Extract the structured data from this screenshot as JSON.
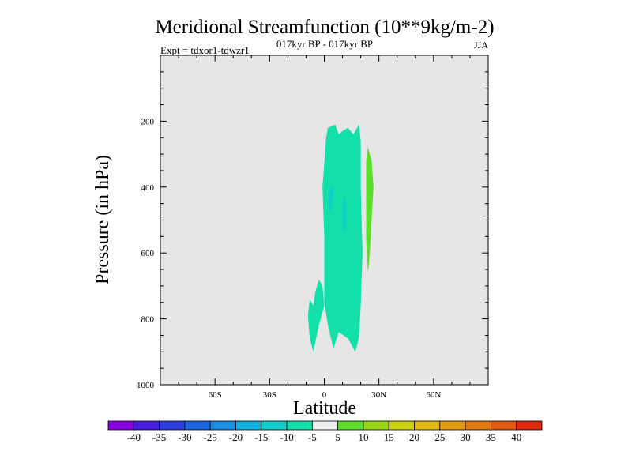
{
  "chart_data": {
    "type": "contour",
    "title": "Meridional Streamfunction (10**9kg/m-2)",
    "subtitle_left": "Expt = tdxor1-tdwzr1",
    "subtitle_center": "017kyr BP - 017kyr BP",
    "subtitle_right": "JJA",
    "xlabel": "Latitude",
    "ylabel": "Pressure (in hPa)",
    "xlim": [
      -90,
      90
    ],
    "ylim": [
      0,
      1000
    ],
    "x_ticks": [
      {
        "value": -60,
        "label": "60S"
      },
      {
        "value": -30,
        "label": "30S"
      },
      {
        "value": 0,
        "label": "0"
      },
      {
        "value": 30,
        "label": "30N"
      },
      {
        "value": 60,
        "label": "60N"
      }
    ],
    "y_ticks": [
      {
        "value": 200,
        "label": "200"
      },
      {
        "value": 400,
        "label": "400"
      },
      {
        "value": 600,
        "label": "600"
      },
      {
        "value": 800,
        "label": "800"
      },
      {
        "value": 1000,
        "label": "1000"
      }
    ],
    "background_color": "#e6e6e6",
    "colorbar": {
      "labels": [
        "-40",
        "-35",
        "-30",
        "-25",
        "-20",
        "-15",
        "-10",
        "-5",
        "5",
        "10",
        "15",
        "20",
        "25",
        "30",
        "35",
        "40"
      ],
      "colors": [
        "#8a00e0",
        "#4a1ee0",
        "#2e3fe0",
        "#1a64e0",
        "#1a8ee6",
        "#12b0e0",
        "#10cccc",
        "#12e0a8",
        "#eeeeee",
        "#5ade2a",
        "#98d614",
        "#ccd00e",
        "#e2b80e",
        "#e29a0e",
        "#e27a0e",
        "#e25a0e",
        "#e0280e"
      ]
    },
    "regions": [
      {
        "name": "negative-5-to-10-main",
        "level": "-10 to -5",
        "color": "#12e0a8",
        "polygon": [
          [
            2,
            220
          ],
          [
            6,
            210
          ],
          [
            8,
            240
          ],
          [
            10,
            230
          ],
          [
            13,
            220
          ],
          [
            16,
            240
          ],
          [
            19,
            210
          ],
          [
            20,
            260
          ],
          [
            20,
            400
          ],
          [
            21,
            600
          ],
          [
            20,
            760
          ],
          [
            19,
            860
          ],
          [
            17,
            900
          ],
          [
            13,
            860
          ],
          [
            8,
            840
          ],
          [
            5,
            890
          ],
          [
            2,
            820
          ],
          [
            0,
            750
          ],
          [
            0,
            550
          ],
          [
            -1,
            400
          ],
          [
            1,
            250
          ]
        ]
      },
      {
        "name": "negative-5-to-10-lower-lobe",
        "level": "-10 to -5",
        "color": "#12e0a8",
        "polygon": [
          [
            -3,
            680
          ],
          [
            -1,
            700
          ],
          [
            0,
            760
          ],
          [
            -3,
            820
          ],
          [
            -6,
            900
          ],
          [
            -8,
            860
          ],
          [
            -9,
            790
          ],
          [
            -8,
            740
          ],
          [
            -6,
            760
          ],
          [
            -5,
            720
          ]
        ]
      },
      {
        "name": "negative-10-to-15-spot-a",
        "level": "-15 to -10",
        "color": "#10cccc",
        "polygon": [
          [
            4,
            390
          ],
          [
            5,
            420
          ],
          [
            4,
            460
          ],
          [
            3,
            480
          ],
          [
            2,
            440
          ],
          [
            3,
            410
          ]
        ]
      },
      {
        "name": "negative-10-to-15-spot-b",
        "level": "-15 to -10",
        "color": "#10cccc",
        "polygon": [
          [
            11,
            420
          ],
          [
            12,
            470
          ],
          [
            12,
            520
          ],
          [
            11,
            540
          ],
          [
            10,
            500
          ],
          [
            10,
            450
          ]
        ]
      },
      {
        "name": "positive-5-to-10",
        "level": "5 to 10",
        "color": "#5ade2a",
        "polygon": [
          [
            24,
            280
          ],
          [
            26,
            320
          ],
          [
            27,
            400
          ],
          [
            26,
            500
          ],
          [
            25,
            600
          ],
          [
            24,
            660
          ],
          [
            23,
            560
          ],
          [
            23,
            400
          ],
          [
            23,
            320
          ]
        ]
      }
    ]
  }
}
